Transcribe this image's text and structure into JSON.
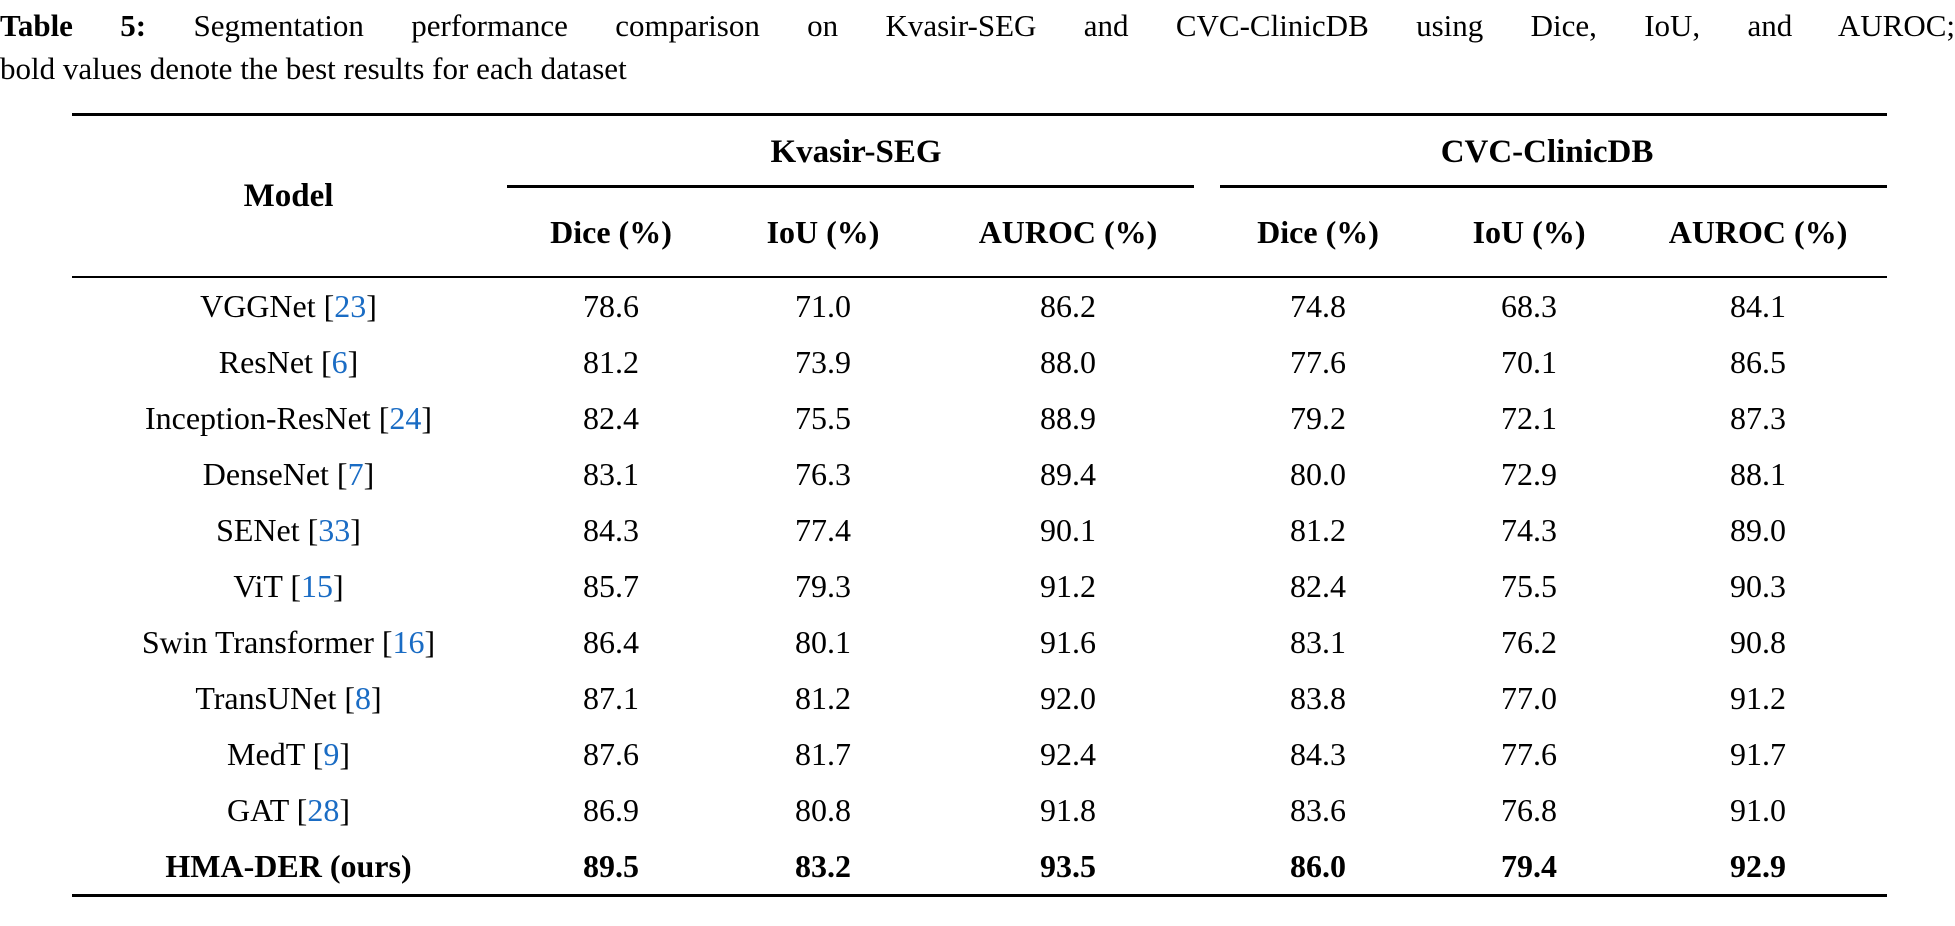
{
  "caption": {
    "label": "Table 5:",
    "line1": "Segmentation performance comparison on Kvasir-SEG and CVC-ClinicDB using Dice, IoU, and AUROC;",
    "line2": "bold values denote the best results for each dataset"
  },
  "colors": {
    "citation_link": "#1a6cc4",
    "text": "#000000",
    "background": "#ffffff"
  },
  "table": {
    "model_header": "Model",
    "groups": [
      {
        "label": "Kvasir-SEG"
      },
      {
        "label": "CVC-ClinicDB"
      }
    ],
    "metric_headers": [
      "Dice (%)",
      "IoU (%)",
      "AUROC (%)",
      "Dice (%)",
      "IoU (%)",
      "AUROC (%)"
    ],
    "citation_brackets": {
      "open": "[",
      "close": "]"
    },
    "rows": [
      {
        "model": "VGGNet",
        "citation": "23",
        "values": [
          "78.6",
          "71.0",
          "86.2",
          "74.8",
          "68.3",
          "84.1"
        ],
        "is_best": false
      },
      {
        "model": "ResNet",
        "citation": "6",
        "values": [
          "81.2",
          "73.9",
          "88.0",
          "77.6",
          "70.1",
          "86.5"
        ],
        "is_best": false
      },
      {
        "model": "Inception-ResNet",
        "citation": "24",
        "values": [
          "82.4",
          "75.5",
          "88.9",
          "79.2",
          "72.1",
          "87.3"
        ],
        "is_best": false
      },
      {
        "model": "DenseNet",
        "citation": "7",
        "values": [
          "83.1",
          "76.3",
          "89.4",
          "80.0",
          "72.9",
          "88.1"
        ],
        "is_best": false
      },
      {
        "model": "SENet",
        "citation": "33",
        "values": [
          "84.3",
          "77.4",
          "90.1",
          "81.2",
          "74.3",
          "89.0"
        ],
        "is_best": false
      },
      {
        "model": "ViT",
        "citation": "15",
        "values": [
          "85.7",
          "79.3",
          "91.2",
          "82.4",
          "75.5",
          "90.3"
        ],
        "is_best": false
      },
      {
        "model": "Swin Transformer",
        "citation": "16",
        "values": [
          "86.4",
          "80.1",
          "91.6",
          "83.1",
          "76.2",
          "90.8"
        ],
        "is_best": false
      },
      {
        "model": "TransUNet",
        "citation": "8",
        "values": [
          "87.1",
          "81.2",
          "92.0",
          "83.8",
          "77.0",
          "91.2"
        ],
        "is_best": false
      },
      {
        "model": "MedT",
        "citation": "9",
        "values": [
          "87.6",
          "81.7",
          "92.4",
          "84.3",
          "77.6",
          "91.7"
        ],
        "is_best": false
      },
      {
        "model": "GAT",
        "citation": "28",
        "values": [
          "86.9",
          "80.8",
          "91.8",
          "83.6",
          "76.8",
          "91.0"
        ],
        "is_best": false
      },
      {
        "model": "HMA-DER (ours)",
        "citation": null,
        "values": [
          "89.5",
          "83.2",
          "93.5",
          "86.0",
          "79.4",
          "92.9"
        ],
        "is_best": true
      }
    ]
  }
}
